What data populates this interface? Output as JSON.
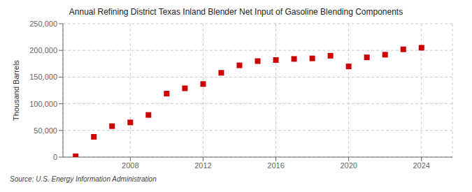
{
  "chart_data": {
    "type": "scatter",
    "title": "Annual Refining District Texas Inland Blender Net Input of Gasoline Blending Components",
    "ylabel": "Thousand Barrels",
    "annotations": [
      "Source: U.S. Energy Information Administration"
    ],
    "x": [
      2005,
      2006,
      2007,
      2008,
      2009,
      2010,
      2011,
      2012,
      2013,
      2014,
      2015,
      2016,
      2017,
      2018,
      2019,
      2020,
      2021,
      2022,
      2023,
      2024
    ],
    "values": [
      1500,
      38000,
      58000,
      65000,
      79000,
      119000,
      129000,
      137000,
      158000,
      172000,
      180000,
      182000,
      184000,
      185000,
      190000,
      170000,
      187000,
      192000,
      202000,
      205000
    ],
    "color": "#cc0000",
    "marker": "square",
    "xlim": [
      2004.3,
      2025.7
    ],
    "xticks": [
      2008,
      2012,
      2016,
      2020,
      2024
    ],
    "ylim": [
      0,
      250000
    ],
    "yticks": [
      0,
      {
        "value": 50000,
        "label": "50,000"
      },
      {
        "value": 100000,
        "label": "100,000"
      },
      {
        "value": 150000,
        "label": "150,000"
      },
      {
        "value": 200000,
        "label": "200,000"
      },
      {
        "value": 250000,
        "label": "250,000"
      }
    ],
    "grid": true
  }
}
